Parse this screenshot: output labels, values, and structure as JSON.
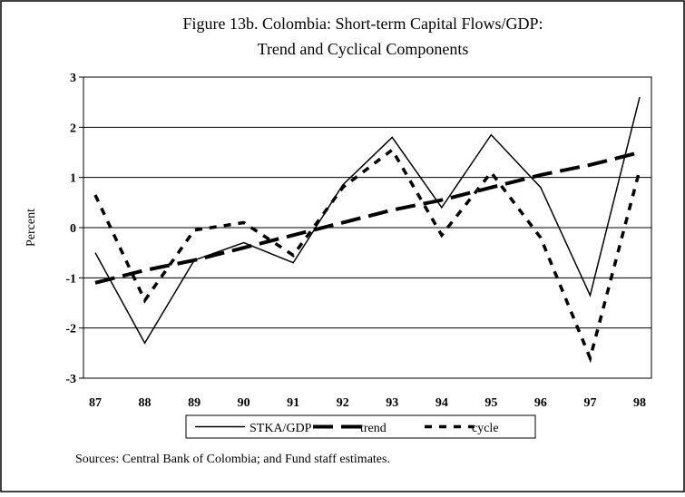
{
  "chart_data": {
    "type": "line",
    "title": "Figure 13b. Colombia: Short-term Capital Flows/GDP:",
    "subtitle": "Trend and Cyclical Components",
    "y_label": "Percent",
    "source": "Sources:  Central Bank of Colombia; and Fund staff estimates.",
    "categories": [
      "87",
      "88",
      "89",
      "90",
      "91",
      "92",
      "93",
      "94",
      "95",
      "96",
      "97",
      "98"
    ],
    "series": [
      {
        "name": "STKA/GDP",
        "color": "#000000",
        "style": "solid",
        "values": [
          -0.5,
          -2.3,
          -0.65,
          -0.3,
          -0.7,
          0.85,
          1.8,
          0.4,
          1.85,
          0.8,
          -1.35,
          2.6
        ]
      },
      {
        "name": "trend",
        "color": "#000000",
        "style": "long-dash",
        "values": [
          -1.1,
          -0.85,
          -0.65,
          -0.4,
          -0.15,
          0.1,
          0.35,
          0.55,
          0.8,
          1.05,
          1.25,
          1.5
        ]
      },
      {
        "name": "cycle",
        "color": "#000000",
        "style": "short-dash",
        "values": [
          0.65,
          -1.45,
          -0.05,
          0.1,
          -0.55,
          0.8,
          1.55,
          -0.15,
          1.1,
          -0.2,
          -2.6,
          1.15
        ]
      }
    ],
    "ylim": [
      -3,
      3
    ],
    "yticks": [
      -3,
      -2,
      -1,
      0,
      1,
      2,
      3
    ],
    "grid": true,
    "legend": "bottom"
  }
}
